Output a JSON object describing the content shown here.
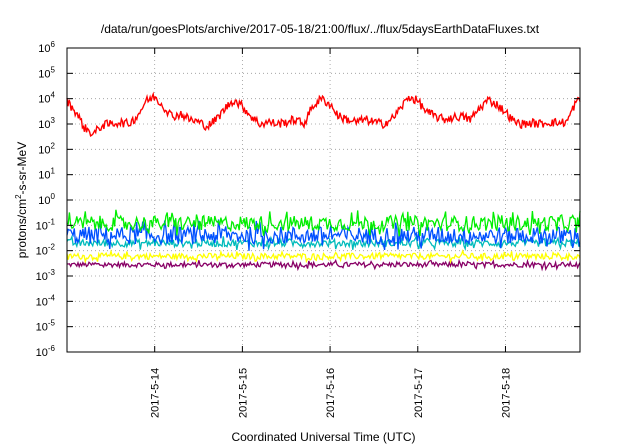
{
  "chart_data": {
    "type": "line",
    "title": "/data/run/goesPlots/archive/2017-05-18/21:00/flux/../flux/5daysEarthDataFluxes.txt",
    "xlabel": "Coordinated Universal Time (UTC)",
    "ylabel_parts": [
      "protons/cm",
      "2",
      "-s-sr-MeV"
    ],
    "yscale": "log",
    "ylim": [
      -6,
      6
    ],
    "xlim": [
      0,
      5.85
    ],
    "grid": true,
    "x_ticks": [
      {
        "x": 1,
        "label": "2017-5-14"
      },
      {
        "x": 2,
        "label": "2017-5-15"
      },
      {
        "x": 3,
        "label": "2017-5-16"
      },
      {
        "x": 4,
        "label": "2017-5-17"
      },
      {
        "x": 5,
        "label": "2017-5-18"
      }
    ],
    "y_ticks": [
      {
        "exp": 6,
        "label": "6"
      },
      {
        "exp": 5,
        "label": "5"
      },
      {
        "exp": 4,
        "label": "4"
      },
      {
        "exp": 3,
        "label": "3"
      },
      {
        "exp": 2,
        "label": "2"
      },
      {
        "exp": 1,
        "label": "1"
      },
      {
        "exp": 0,
        "label": "0"
      },
      {
        "exp": -1,
        "label": "-1"
      },
      {
        "exp": -2,
        "label": "-2"
      },
      {
        "exp": -3,
        "label": "-3"
      },
      {
        "exp": -4,
        "label": "-4"
      },
      {
        "exp": -5,
        "label": "-5"
      },
      {
        "exp": -6,
        "label": "-6"
      }
    ],
    "y_tick_base": "10",
    "series": [
      {
        "color": "#ff0000",
        "x": [
          0,
          0.1,
          0.2,
          0.3,
          0.4,
          0.5,
          0.6,
          0.7,
          0.8,
          0.9,
          1.0,
          1.1,
          1.2,
          1.3,
          1.4,
          1.5,
          1.6,
          1.7,
          1.8,
          1.9,
          2.0,
          2.1,
          2.2,
          2.3,
          2.4,
          2.5,
          2.6,
          2.7,
          2.8,
          2.9,
          3.0,
          3.1,
          3.2,
          3.3,
          3.4,
          3.5,
          3.6,
          3.7,
          3.8,
          3.9,
          4.0,
          4.1,
          4.2,
          4.3,
          4.4,
          4.5,
          4.6,
          4.7,
          4.8,
          4.9,
          5.0,
          5.1,
          5.2,
          5.3,
          5.4,
          5.5,
          5.6,
          5.7,
          5.8,
          5.85
        ],
        "y": [
          8000,
          3000,
          700,
          400,
          900,
          1000,
          1200,
          1000,
          2000,
          8000,
          12000,
          5000,
          2000,
          2500,
          1500,
          1200,
          800,
          1500,
          4000,
          9000,
          5000,
          2000,
          1000,
          1200,
          1000,
          1200,
          1500,
          1000,
          5000,
          10000,
          6000,
          2000,
          1500,
          1200,
          1500,
          1200,
          1000,
          1500,
          4000,
          12000,
          8000,
          3000,
          2000,
          1500,
          1800,
          2000,
          1500,
          4000,
          9000,
          6000,
          3000,
          1200,
          1000,
          1100,
          1000,
          1200,
          1100,
          1200,
          7000,
          9000
        ]
      },
      {
        "color": "#00ee00",
        "level": 0.12,
        "spread": 0.3
      },
      {
        "color": "#0050ff",
        "level": 0.04,
        "spread": 0.35
      },
      {
        "color": "#00bbbb",
        "level": 0.02,
        "spread": 0.15
      },
      {
        "color": "#ffff00",
        "level": 0.006,
        "spread": 0.12
      },
      {
        "color": "#880066",
        "level": 0.0028,
        "spread": 0.1
      }
    ]
  }
}
